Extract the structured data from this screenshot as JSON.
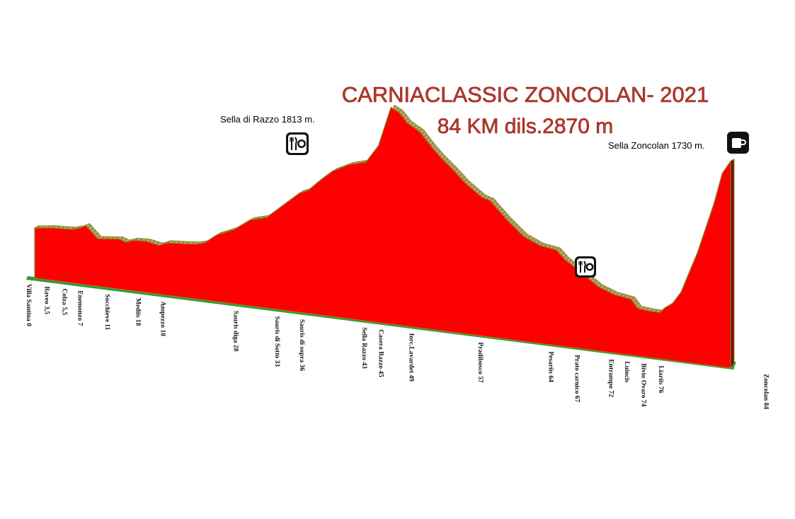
{
  "title": "CARNIACLASSIC ZONCOLAN- 2021",
  "subtitle": "84 KM  dils.2870 m",
  "summits": [
    {
      "label": "Sella di Razzo 1813 m.",
      "icon": "food-icon"
    },
    {
      "label": "Sella Zoncolan 1730 m.",
      "icon": "cup-icon"
    }
  ],
  "feed_stations": [
    {
      "km": 40,
      "icon": "food-icon"
    },
    {
      "km": 73,
      "icon": "food-icon"
    }
  ],
  "colors": {
    "fill": "#ff0000",
    "outline": "#8a8a2a",
    "base": "#2e9a35",
    "title": "#c0392b"
  },
  "chart_data": {
    "type": "area",
    "title": "CARNIACLASSIC ZONCOLAN- 2021",
    "subtitle": "84 KM  dils.2870 m",
    "xlabel": "",
    "ylabel": "",
    "x_unit": "km",
    "y_unit": "m",
    "xlim": [
      0,
      84
    ],
    "ylim": [
      0,
      2000
    ],
    "grid": false,
    "legend": "none",
    "profile": [
      {
        "x": 0,
        "y": 420
      },
      {
        "x": 1,
        "y": 430
      },
      {
        "x": 2,
        "y": 440
      },
      {
        "x": 3.5,
        "y": 445
      },
      {
        "x": 4.5,
        "y": 450
      },
      {
        "x": 5.5,
        "y": 470
      },
      {
        "x": 6.2,
        "y": 495
      },
      {
        "x": 7,
        "y": 440
      },
      {
        "x": 7.6,
        "y": 400
      },
      {
        "x": 9,
        "y": 410
      },
      {
        "x": 10.2,
        "y": 420
      },
      {
        "x": 11,
        "y": 400
      },
      {
        "x": 12,
        "y": 425
      },
      {
        "x": 13.5,
        "y": 430
      },
      {
        "x": 15,
        "y": 410
      },
      {
        "x": 16,
        "y": 440
      },
      {
        "x": 18,
        "y": 450
      },
      {
        "x": 19.5,
        "y": 460
      },
      {
        "x": 20.5,
        "y": 480
      },
      {
        "x": 22,
        "y": 560
      },
      {
        "x": 24,
        "y": 620
      },
      {
        "x": 26,
        "y": 720
      },
      {
        "x": 28,
        "y": 760
      },
      {
        "x": 30,
        "y": 880
      },
      {
        "x": 32,
        "y": 1000
      },
      {
        "x": 33,
        "y": 1030
      },
      {
        "x": 34.5,
        "y": 1130
      },
      {
        "x": 36,
        "y": 1220
      },
      {
        "x": 38,
        "y": 1290
      },
      {
        "x": 40,
        "y": 1330
      },
      {
        "x": 41.5,
        "y": 1480
      },
      {
        "x": 43,
        "y": 1813
      },
      {
        "x": 44,
        "y": 1780
      },
      {
        "x": 45,
        "y": 1700
      },
      {
        "x": 46.5,
        "y": 1640
      },
      {
        "x": 48,
        "y": 1520
      },
      {
        "x": 49,
        "y": 1450
      },
      {
        "x": 50.5,
        "y": 1360
      },
      {
        "x": 52,
        "y": 1260
      },
      {
        "x": 54,
        "y": 1160
      },
      {
        "x": 55,
        "y": 1140
      },
      {
        "x": 57,
        "y": 1000
      },
      {
        "x": 59,
        "y": 880
      },
      {
        "x": 61,
        "y": 820
      },
      {
        "x": 63,
        "y": 800
      },
      {
        "x": 64,
        "y": 730
      },
      {
        "x": 66,
        "y": 640
      },
      {
        "x": 68,
        "y": 540
      },
      {
        "x": 70,
        "y": 490
      },
      {
        "x": 72,
        "y": 470
      },
      {
        "x": 72.8,
        "y": 400
      },
      {
        "x": 74.5,
        "y": 390
      },
      {
        "x": 75.5,
        "y": 390
      },
      {
        "x": 76,
        "y": 430
      },
      {
        "x": 77,
        "y": 480
      },
      {
        "x": 78,
        "y": 580
      },
      {
        "x": 80,
        "y": 930
      },
      {
        "x": 82,
        "y": 1360
      },
      {
        "x": 83,
        "y": 1620
      },
      {
        "x": 84,
        "y": 1730
      }
    ],
    "locations": [
      {
        "km": 0,
        "label": "Villa Santina 0"
      },
      {
        "km": 2.2,
        "label": "Raveo 3,5"
      },
      {
        "km": 4.3,
        "label": "Colza 5,5"
      },
      {
        "km": 6.2,
        "label": "Enemonzo 7"
      },
      {
        "km": 9.5,
        "label": "Socchieve 11"
      },
      {
        "km": 13.2,
        "label": "Mediis   18"
      },
      {
        "km": 16.2,
        "label": "Ampezzo 18"
      },
      {
        "km": 25,
        "label": "Sauris diga   28"
      },
      {
        "km": 30,
        "label": "Sauris di Sotto   33"
      },
      {
        "km": 33,
        "label": "Sauris di sopra  36"
      },
      {
        "km": 40.5,
        "label": "Sella Razzo 43"
      },
      {
        "km": 42.5,
        "label": "Casera Razzo  45"
      },
      {
        "km": 46.2,
        "label": "forc.Lavardet  49"
      },
      {
        "km": 54.5,
        "label": "Pradibosco   57"
      },
      {
        "km": 63,
        "label": "Pesariis  64"
      },
      {
        "km": 66.2,
        "label": "Prato carnico  67"
      },
      {
        "km": 70.3,
        "label": "Entrampo 72"
      },
      {
        "km": 72.2,
        "label": "Luincis"
      },
      {
        "km": 74.2,
        "label": "Bivio Ovaro 74"
      },
      {
        "km": 76.3,
        "label": "Liariis  76"
      },
      {
        "km": 89,
        "label": "Zoncolan 84"
      }
    ]
  }
}
